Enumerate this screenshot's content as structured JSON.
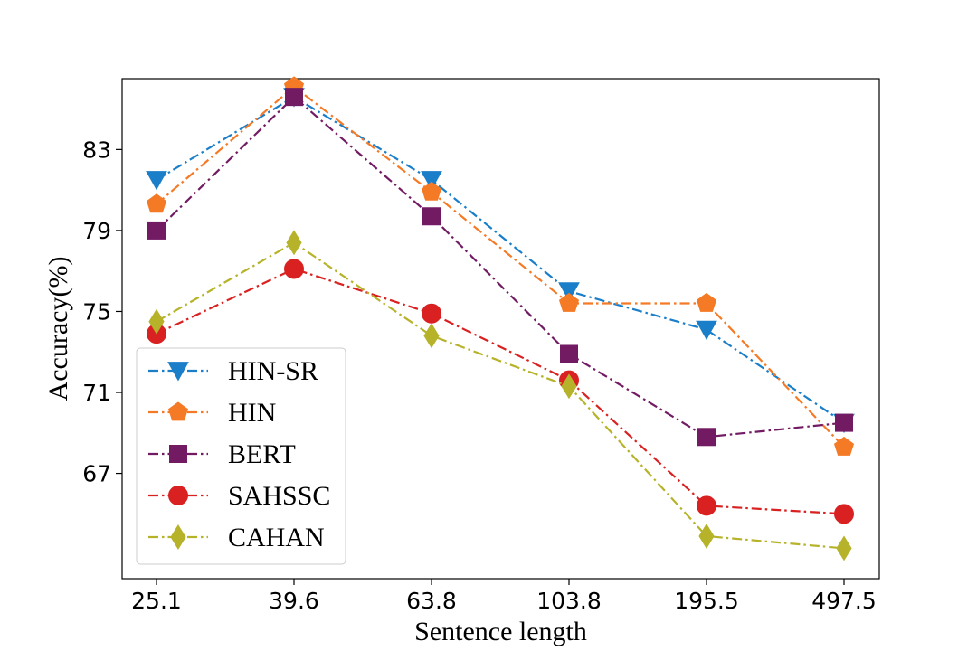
{
  "chart_data": {
    "type": "line",
    "title": "",
    "xlabel": "Sentence length",
    "ylabel": "Accuracy(%)",
    "categories": [
      "25.1",
      "39.6",
      "63.8",
      "103.8",
      "195.5",
      "497.5"
    ],
    "yticks": [
      67,
      71,
      75,
      79,
      83
    ],
    "ylim": [
      61.8,
      86.5
    ],
    "grid": false,
    "legend_position": "lower-left",
    "series": [
      {
        "name": "HIN-SR",
        "color": "#1a7ec9",
        "marker": "triangle-down",
        "values": [
          81.5,
          85.6,
          81.5,
          76.0,
          74.1,
          69.5
        ]
      },
      {
        "name": "HIN",
        "color": "#f57a26",
        "marker": "pentagon",
        "values": [
          80.3,
          86.1,
          80.9,
          75.4,
          75.4,
          68.3
        ]
      },
      {
        "name": "BERT",
        "color": "#721b63",
        "marker": "square",
        "values": [
          79.0,
          85.6,
          79.7,
          72.9,
          68.8,
          69.5
        ]
      },
      {
        "name": "SAHSSC",
        "color": "#d92121",
        "marker": "circle",
        "values": [
          73.9,
          77.1,
          74.9,
          71.6,
          65.4,
          65.0
        ]
      },
      {
        "name": "CAHAN",
        "color": "#b6b32a",
        "marker": "diamond",
        "values": [
          74.5,
          78.4,
          73.8,
          71.3,
          63.9,
          63.3
        ]
      }
    ]
  }
}
